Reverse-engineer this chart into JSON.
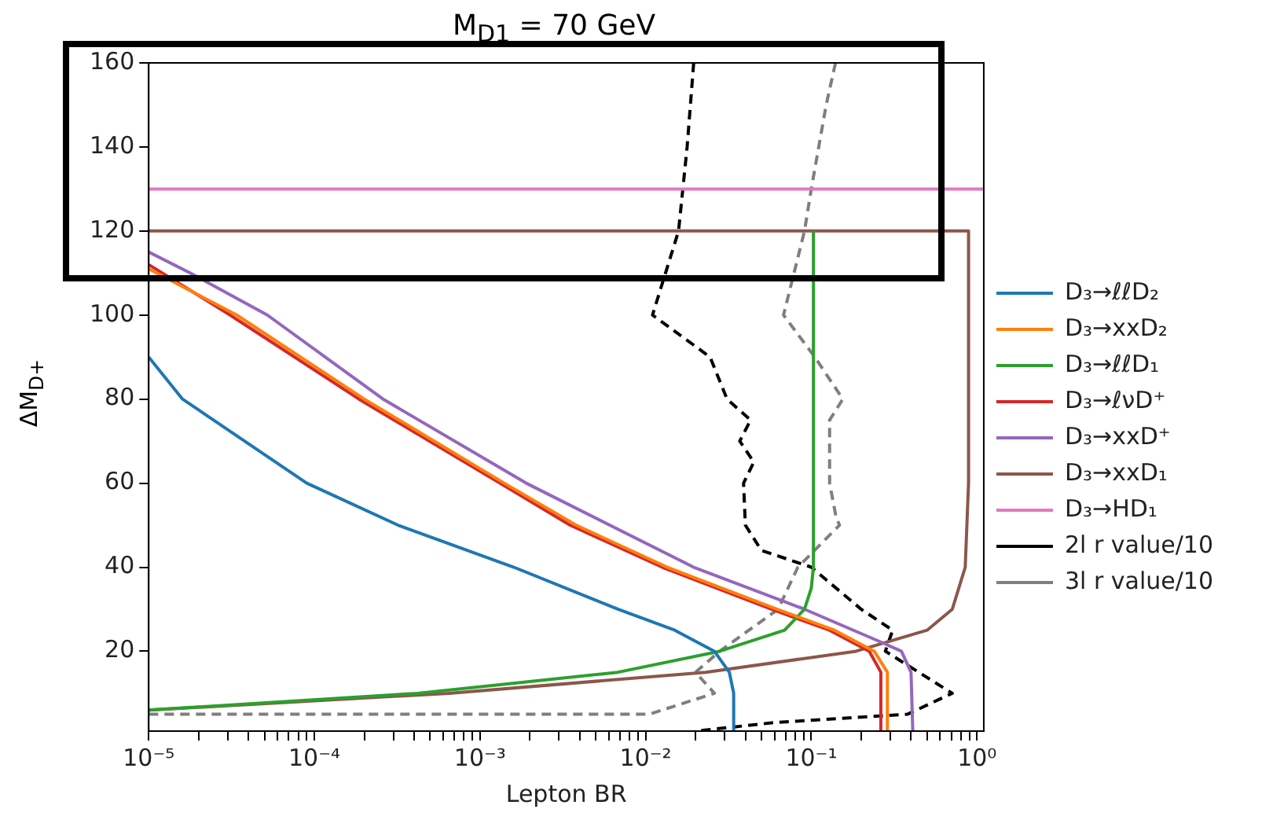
{
  "chart_data": {
    "type": "line",
    "title": "M$_{D1}$ = 70 GeV",
    "xlabel": "Lepton BR",
    "ylabel": "ΔM$_{D+}$",
    "log": "x",
    "grid": false,
    "legend": "right",
    "marker": "none",
    "xlim": [
      1e-05,
      1.1
    ],
    "ylim": [
      1,
      160
    ],
    "xticks": [
      {
        "value": 1e-05,
        "label": "10⁻⁵"
      },
      {
        "value": 2e-05,
        "label": null
      },
      {
        "value": 3e-05,
        "label": null
      },
      {
        "value": 4e-05,
        "label": null
      },
      {
        "value": 5e-05,
        "label": null
      },
      {
        "value": 6e-05,
        "label": null
      },
      {
        "value": 7e-05,
        "label": null
      },
      {
        "value": 8e-05,
        "label": null
      },
      {
        "value": 9e-05,
        "label": null
      },
      {
        "value": 0.0001,
        "label": "10⁻⁴"
      },
      {
        "value": 0.0002,
        "label": null
      },
      {
        "value": 0.0003,
        "label": null
      },
      {
        "value": 0.0004,
        "label": null
      },
      {
        "value": 0.0005,
        "label": null
      },
      {
        "value": 0.0006,
        "label": null
      },
      {
        "value": 0.0007,
        "label": null
      },
      {
        "value": 0.0008,
        "label": null
      },
      {
        "value": 0.0009,
        "label": null
      },
      {
        "value": 0.001,
        "label": "10⁻³"
      },
      {
        "value": 0.002,
        "label": null
      },
      {
        "value": 0.003,
        "label": null
      },
      {
        "value": 0.004,
        "label": null
      },
      {
        "value": 0.005,
        "label": null
      },
      {
        "value": 0.006,
        "label": null
      },
      {
        "value": 0.007,
        "label": null
      },
      {
        "value": 0.008,
        "label": null
      },
      {
        "value": 0.009,
        "label": null
      },
      {
        "value": 0.01,
        "label": "10⁻²"
      },
      {
        "value": 0.02,
        "label": null
      },
      {
        "value": 0.03,
        "label": null
      },
      {
        "value": 0.04,
        "label": null
      },
      {
        "value": 0.05,
        "label": null
      },
      {
        "value": 0.06,
        "label": null
      },
      {
        "value": 0.07,
        "label": null
      },
      {
        "value": 0.08,
        "label": null
      },
      {
        "value": 0.09,
        "label": null
      },
      {
        "value": 0.1,
        "label": "10⁻¹"
      },
      {
        "value": 0.2,
        "label": null
      },
      {
        "value": 0.3,
        "label": null
      },
      {
        "value": 0.4,
        "label": null
      },
      {
        "value": 0.5,
        "label": null
      },
      {
        "value": 0.6,
        "label": null
      },
      {
        "value": 0.7,
        "label": null
      },
      {
        "value": 0.8,
        "label": null
      },
      {
        "value": 0.9,
        "label": null
      },
      {
        "value": 1,
        "label": "10⁰"
      }
    ],
    "yticks": [
      20,
      40,
      60,
      80,
      100,
      120,
      140,
      160
    ],
    "series": [
      {
        "name": "D₃→ℓℓD₂",
        "color": "#1f77b4",
        "x": [
          1e-05,
          1.6e-05,
          9e-05,
          0.00032,
          0.0016,
          0.0068,
          0.015,
          0.026,
          0.032,
          0.034,
          0.034
        ],
        "values": [
          90,
          80,
          60,
          50,
          40,
          30,
          25,
          20,
          15,
          10,
          1
        ]
      },
      {
        "name": "D₃→xxD₂",
        "color": "#ff7f0e",
        "x": [
          1e-05,
          3.4e-05,
          0.0002,
          0.0014,
          0.0038,
          0.0135,
          0.062,
          0.138,
          0.24,
          0.288,
          0.288
        ],
        "values": [
          111,
          100,
          80,
          60,
          50,
          40,
          30,
          25,
          20,
          15,
          1
        ]
      },
      {
        "name": "D₃→ℓℓD₁",
        "color": "#2ca02c",
        "x": [
          1e-05,
          0.00042,
          0.0068,
          0.028,
          0.069,
          0.091,
          0.1,
          0.103,
          0.103
        ],
        "values": [
          6,
          10,
          15,
          20,
          25,
          30,
          35,
          40,
          120
        ]
      },
      {
        "name": "D₃→ℓνD⁺",
        "color": "#d62728",
        "x": [
          1e-05,
          3.1e-05,
          0.000186,
          0.00132,
          0.0035,
          0.0126,
          0.0575,
          0.129,
          0.224,
          0.263,
          0.263
        ],
        "values": [
          112,
          100,
          80,
          60,
          50,
          40,
          30,
          25,
          20,
          15,
          1
        ]
      },
      {
        "name": "D₃→xxD⁺",
        "color": "#9467bd",
        "x": [
          1e-05,
          1.78e-05,
          5.2e-05,
          0.00026,
          0.0019,
          0.0195,
          0.091,
          0.27,
          0.35,
          0.4,
          0.41
        ],
        "values": [
          115,
          110,
          100,
          80,
          60,
          40,
          30,
          22,
          20,
          15,
          1
        ]
      },
      {
        "name": "D₃→xxD₁",
        "color": "#8c564b",
        "x": [
          1e-05,
          0.00065,
          0.023,
          0.186,
          0.5,
          0.71,
          0.85,
          0.89,
          0.89,
          1e-05
        ],
        "values": [
          6,
          10,
          15,
          20,
          25,
          30,
          40,
          60,
          120,
          120
        ]
      },
      {
        "name": "D₃→HD₁",
        "color": "#e377c2",
        "x": [
          1e-05,
          1.1
        ],
        "values": [
          130,
          130
        ]
      },
      {
        "name": "2l r value/10",
        "color": "#000000",
        "line_style": "dashed",
        "x": [
          0.0195,
          0.0178,
          0.0158,
          0.011,
          0.0245,
          0.031,
          0.043,
          0.037,
          0.045,
          0.039,
          0.04,
          0.05,
          0.1,
          0.2,
          0.31,
          0.28,
          0.71,
          0.38,
          0.059,
          0.02
        ],
        "values": [
          160,
          140,
          120,
          100,
          90,
          80,
          75,
          70,
          65,
          60,
          50,
          44,
          40,
          30,
          25,
          20,
          10,
          5,
          3,
          1
        ]
      },
      {
        "name": "3l r value/10",
        "color": "#7f7f7f",
        "line_style": "dashed",
        "x": [
          0.14,
          0.123,
          0.1,
          0.091,
          0.068,
          0.105,
          0.155,
          0.129,
          0.129,
          0.141,
          0.148,
          0.083,
          0.063,
          0.028,
          0.02,
          0.026,
          0.0105,
          1e-05
        ],
        "values": [
          160,
          150,
          130,
          120,
          100,
          90,
          80,
          75,
          60,
          52,
          50,
          40,
          30,
          20,
          15,
          10,
          5,
          5
        ]
      }
    ]
  }
}
